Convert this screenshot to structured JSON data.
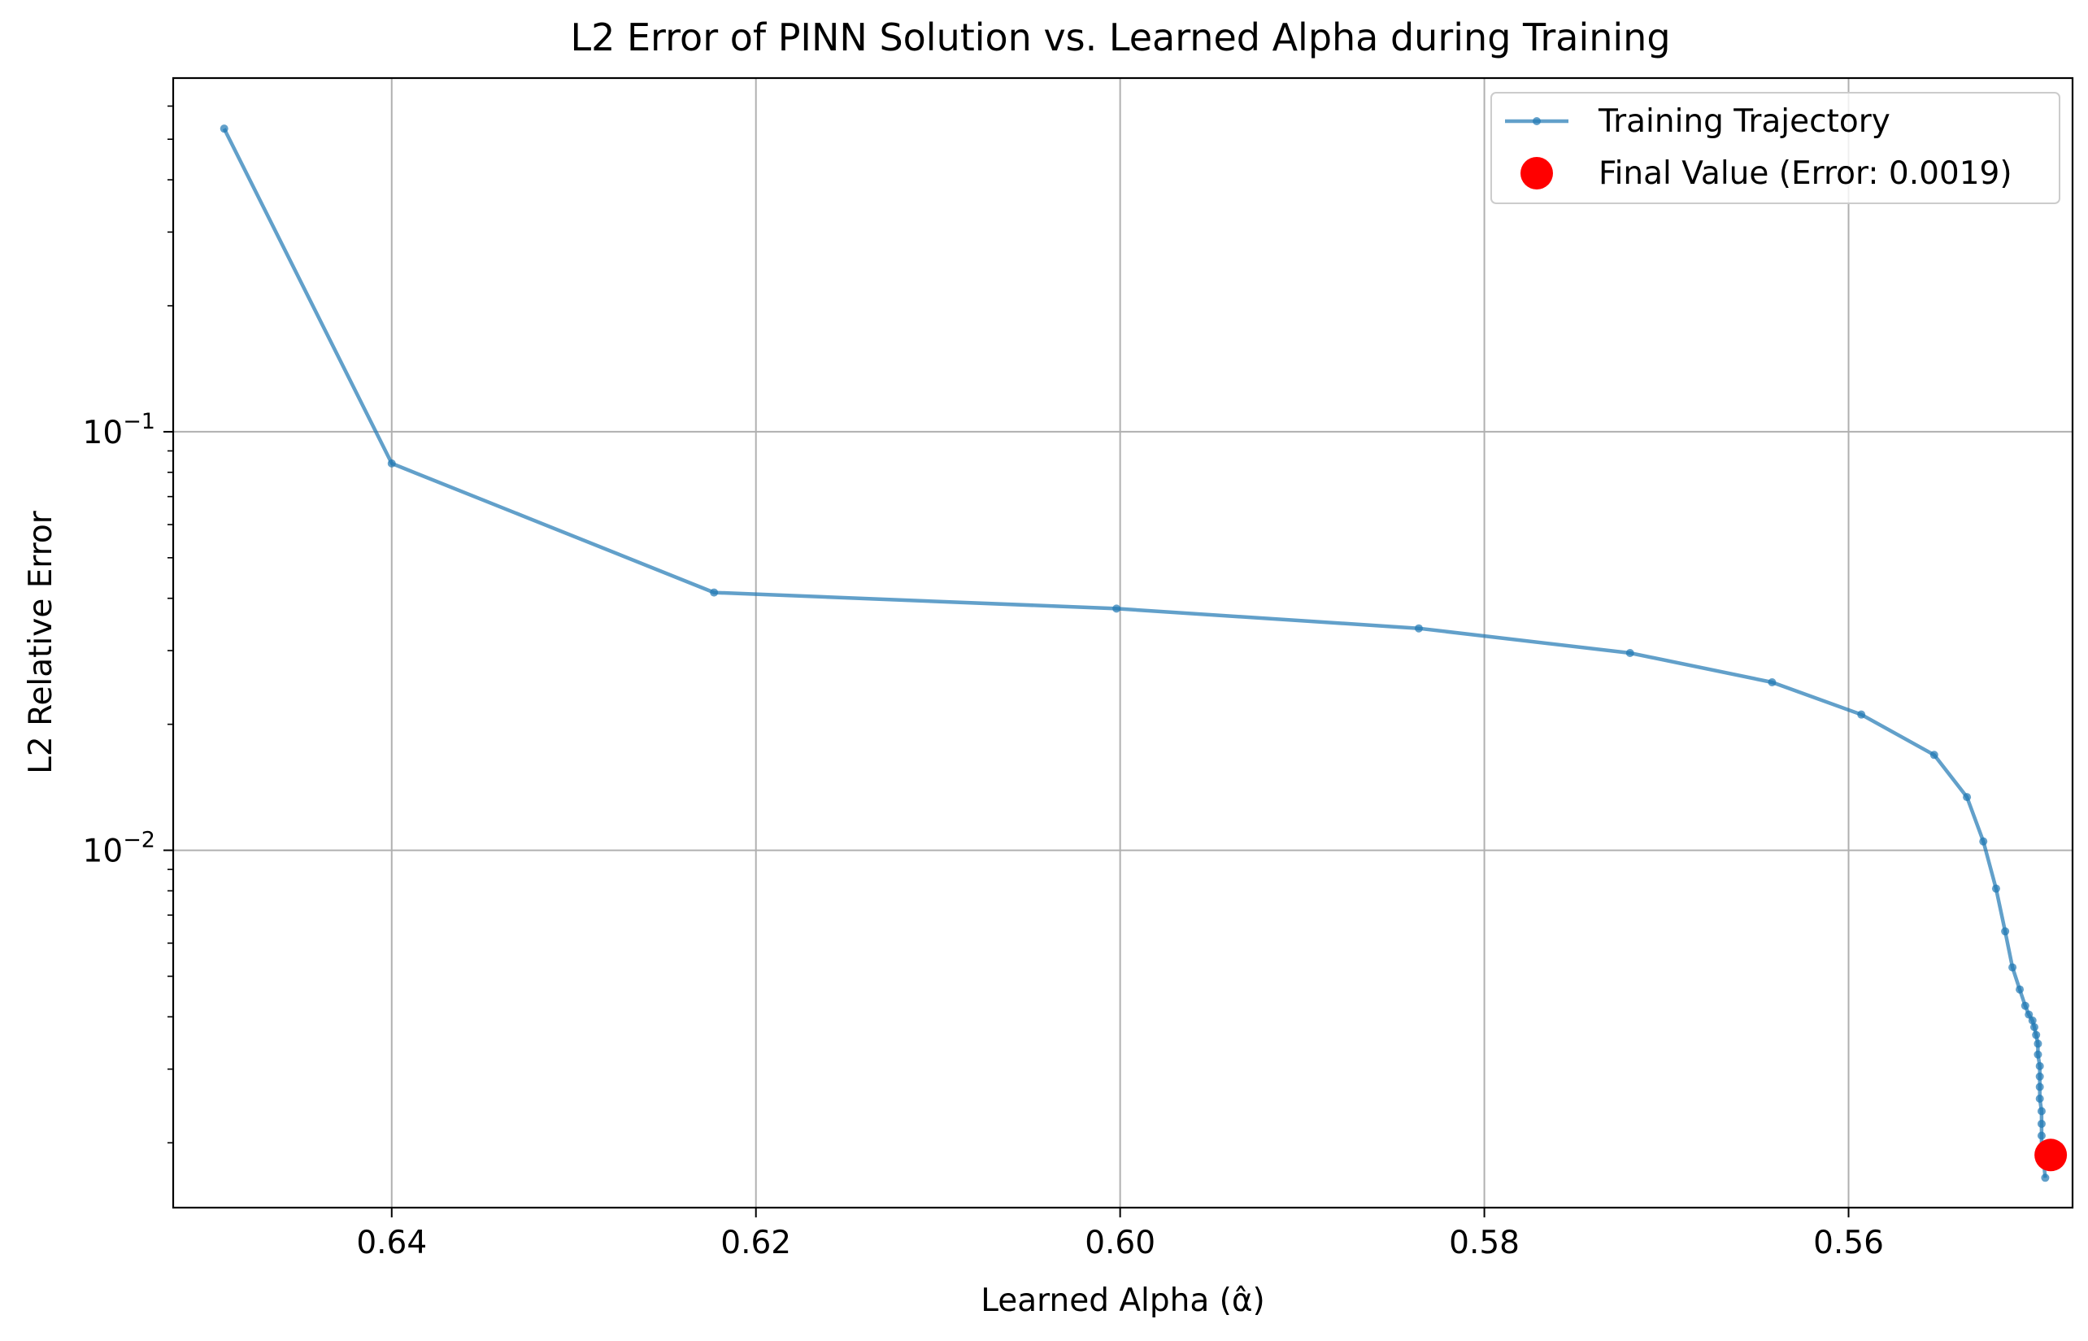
{
  "chart_data": {
    "type": "line",
    "title": "L2 Error of PINN Solution vs. Learned Alpha during Training",
    "xlabel": "Learned Alpha (α̂)",
    "ylabel": "L2 Relative Error",
    "xlim": [
      0.652,
      0.5477
    ],
    "ylim": [
      0.0014,
      0.7
    ],
    "yscale": "log",
    "x_inverted": true,
    "grid": true,
    "legend_position": "upper right",
    "xticks": [
      0.64,
      0.62,
      0.6,
      0.58,
      0.56
    ],
    "xtick_labels": [
      "0.64",
      "0.62",
      "0.60",
      "0.58",
      "0.56"
    ],
    "ytick_labels": [
      {
        "base": "10",
        "exp": "−1",
        "value": 0.1
      },
      {
        "base": "10",
        "exp": "−2",
        "value": 0.01
      }
    ],
    "series": [
      {
        "name": "Training Trajectory",
        "color": "#1f77b4",
        "x": [
          0.6492,
          0.64,
          0.6223,
          0.6002,
          0.5836,
          0.572,
          0.5642,
          0.5593,
          0.5553,
          0.5535,
          0.5526,
          0.5519,
          0.5514,
          0.551,
          0.5506,
          0.5503,
          0.5501,
          0.5499,
          0.5498,
          0.5497,
          0.5496,
          0.5496,
          0.5495,
          0.5495,
          0.5495,
          0.5495,
          0.5494,
          0.5494,
          0.5494,
          0.5494,
          0.5493,
          0.5492
        ],
        "y": [
          0.53,
          0.084,
          0.0413,
          0.0378,
          0.0339,
          0.0296,
          0.0252,
          0.0211,
          0.0169,
          0.0134,
          0.0105,
          0.0081,
          0.0064,
          0.00525,
          0.00465,
          0.00425,
          0.00405,
          0.00392,
          0.00378,
          0.00362,
          0.00345,
          0.00325,
          0.00305,
          0.00288,
          0.00272,
          0.00255,
          0.00238,
          0.00222,
          0.00208,
          0.00195,
          0.00183,
          0.00165
        ]
      },
      {
        "name": "Final Value (Error: 0.0019)",
        "color": "#ff0000",
        "x": [
          0.5489
        ],
        "y": [
          0.00187
        ]
      }
    ]
  }
}
